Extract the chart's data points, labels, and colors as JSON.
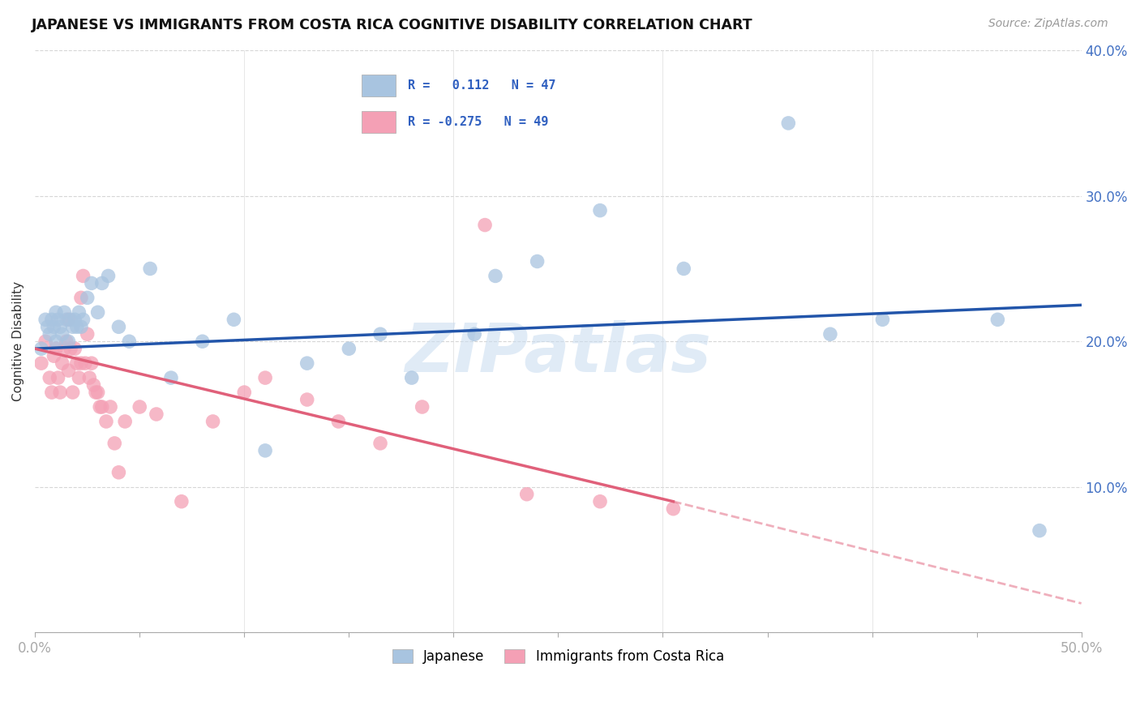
{
  "title": "JAPANESE VS IMMIGRANTS FROM COSTA RICA COGNITIVE DISABILITY CORRELATION CHART",
  "source": "Source: ZipAtlas.com",
  "ylabel": "Cognitive Disability",
  "xmin": 0.0,
  "xmax": 0.5,
  "ymin": 0.0,
  "ymax": 0.4,
  "series1_label": "Japanese",
  "series2_label": "Immigrants from Costa Rica",
  "series1_color": "#a8c4e0",
  "series2_color": "#f4a0b5",
  "series1_line_color": "#2255aa",
  "series2_line_color": "#e0607a",
  "series1_R": "0.112",
  "series1_N": "47",
  "series2_R": "-0.275",
  "series2_N": "49",
  "legend_R_color": "#3060c0",
  "watermark": "ZIPatlas",
  "japanese_x": [
    0.003,
    0.005,
    0.006,
    0.007,
    0.008,
    0.009,
    0.01,
    0.01,
    0.011,
    0.012,
    0.013,
    0.014,
    0.015,
    0.016,
    0.017,
    0.018,
    0.019,
    0.02,
    0.021,
    0.022,
    0.023,
    0.025,
    0.027,
    0.03,
    0.032,
    0.035,
    0.04,
    0.045,
    0.055,
    0.065,
    0.08,
    0.095,
    0.11,
    0.13,
    0.15,
    0.165,
    0.18,
    0.21,
    0.22,
    0.24,
    0.27,
    0.31,
    0.36,
    0.38,
    0.405,
    0.46,
    0.48
  ],
  "japanese_y": [
    0.195,
    0.215,
    0.21,
    0.205,
    0.215,
    0.21,
    0.2,
    0.22,
    0.215,
    0.21,
    0.205,
    0.22,
    0.215,
    0.2,
    0.215,
    0.21,
    0.215,
    0.21,
    0.22,
    0.21,
    0.215,
    0.23,
    0.24,
    0.22,
    0.24,
    0.245,
    0.21,
    0.2,
    0.25,
    0.175,
    0.2,
    0.215,
    0.125,
    0.185,
    0.195,
    0.205,
    0.175,
    0.205,
    0.245,
    0.255,
    0.29,
    0.25,
    0.35,
    0.205,
    0.215,
    0.215,
    0.07
  ],
  "costarica_x": [
    0.003,
    0.005,
    0.007,
    0.008,
    0.009,
    0.01,
    0.011,
    0.012,
    0.013,
    0.014,
    0.015,
    0.016,
    0.016,
    0.017,
    0.018,
    0.019,
    0.02,
    0.021,
    0.022,
    0.022,
    0.023,
    0.024,
    0.025,
    0.026,
    0.027,
    0.028,
    0.029,
    0.03,
    0.031,
    0.032,
    0.034,
    0.036,
    0.038,
    0.04,
    0.043,
    0.05,
    0.058,
    0.07,
    0.085,
    0.1,
    0.11,
    0.13,
    0.145,
    0.165,
    0.185,
    0.215,
    0.235,
    0.27,
    0.305
  ],
  "costarica_y": [
    0.185,
    0.2,
    0.175,
    0.165,
    0.19,
    0.195,
    0.175,
    0.165,
    0.185,
    0.195,
    0.2,
    0.18,
    0.215,
    0.195,
    0.165,
    0.195,
    0.185,
    0.175,
    0.185,
    0.23,
    0.245,
    0.185,
    0.205,
    0.175,
    0.185,
    0.17,
    0.165,
    0.165,
    0.155,
    0.155,
    0.145,
    0.155,
    0.13,
    0.11,
    0.145,
    0.155,
    0.15,
    0.09,
    0.145,
    0.165,
    0.175,
    0.16,
    0.145,
    0.13,
    0.155,
    0.28,
    0.095,
    0.09,
    0.085
  ],
  "jp_line_x0": 0.0,
  "jp_line_y0": 0.195,
  "jp_line_x1": 0.5,
  "jp_line_y1": 0.225,
  "cr_line_x0": 0.0,
  "cr_line_y0": 0.195,
  "cr_line_x1": 0.305,
  "cr_line_y1": 0.09,
  "cr_line_dash_x1": 0.5,
  "cr_line_dash_y1": 0.02
}
